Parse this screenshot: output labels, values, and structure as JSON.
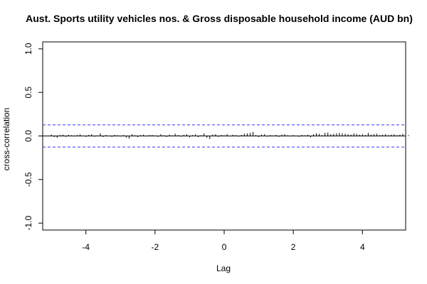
{
  "chart_data": {
    "type": "ccf",
    "title": "Aust. Sports utility vehicles nos.  & Gross disposable household income (AUD bn)",
    "xlabel": "Lag",
    "ylabel": "cross-correlation",
    "xlim": [
      -5.25,
      5.25
    ],
    "ylim": [
      -1.08,
      1.08
    ],
    "x_ticks": [
      -4,
      -2,
      0,
      2,
      4
    ],
    "x_tick_labels": [
      "-4",
      "-2",
      "0",
      "2",
      "4"
    ],
    "y_ticks": [
      -1.0,
      -0.5,
      0.0,
      0.5,
      1.0
    ],
    "y_tick_labels": [
      "-1.0",
      "-0.5",
      "0.0",
      "0.5",
      "1.0"
    ],
    "confidence_bound": 0.127,
    "lag_step": 0.0833333,
    "lag_min": -5.0,
    "values": [
      0.015,
      -0.012,
      -0.02,
      0.01,
      0.015,
      -0.01,
      0.012,
      0.008,
      -0.006,
      0.01,
      0.018,
      0.005,
      -0.01,
      0.012,
      0.02,
      -0.008,
      0.006,
      0.03,
      -0.012,
      0.01,
      0.004,
      -0.01,
      0.012,
      0.008,
      -0.006,
      0.01,
      -0.018,
      -0.03,
      0.02,
      0.008,
      -0.012,
      0.01,
      0.015,
      -0.006,
      0.01,
      0.012,
      0.006,
      -0.01,
      0.02,
      0.008,
      -0.012,
      0.015,
      0.006,
      0.025,
      0.01,
      -0.008,
      0.012,
      0.02,
      -0.015,
      0.01,
      0.018,
      -0.012,
      0.008,
      0.03,
      -0.02,
      -0.035,
      0.015,
      0.02,
      -0.01,
      0.012,
      0.008,
      0.02,
      -0.006,
      0.015,
      0.01,
      -0.008,
      0.012,
      0.025,
      0.03,
      0.035,
      0.045,
      0.01,
      -0.012,
      0.015,
      0.02,
      -0.008,
      0.01,
      0.006,
      0.012,
      -0.01,
      0.015,
      0.02,
      0.008,
      -0.006,
      0.01,
      0.004,
      -0.01,
      0.012,
      0.008,
      0.015,
      -0.015,
      0.02,
      0.03,
      0.025,
      0.01,
      0.035,
      0.04,
      0.02,
      0.025,
      0.03,
      0.035,
      0.03,
      0.025,
      0.02,
      0.015,
      0.03,
      0.025,
      0.015,
      0.02,
      0.01,
      0.035,
      0.015,
      0.02,
      0.025,
      0.01,
      0.015,
      0.02,
      0.01,
      0.015,
      0.02,
      0.01,
      0.015,
      0.025,
      0.035,
      0.01
    ]
  },
  "colors": {
    "bars": "#000000",
    "confidence_lines": "#3333ff",
    "zero_line": "#000000",
    "frame": "#000000"
  }
}
